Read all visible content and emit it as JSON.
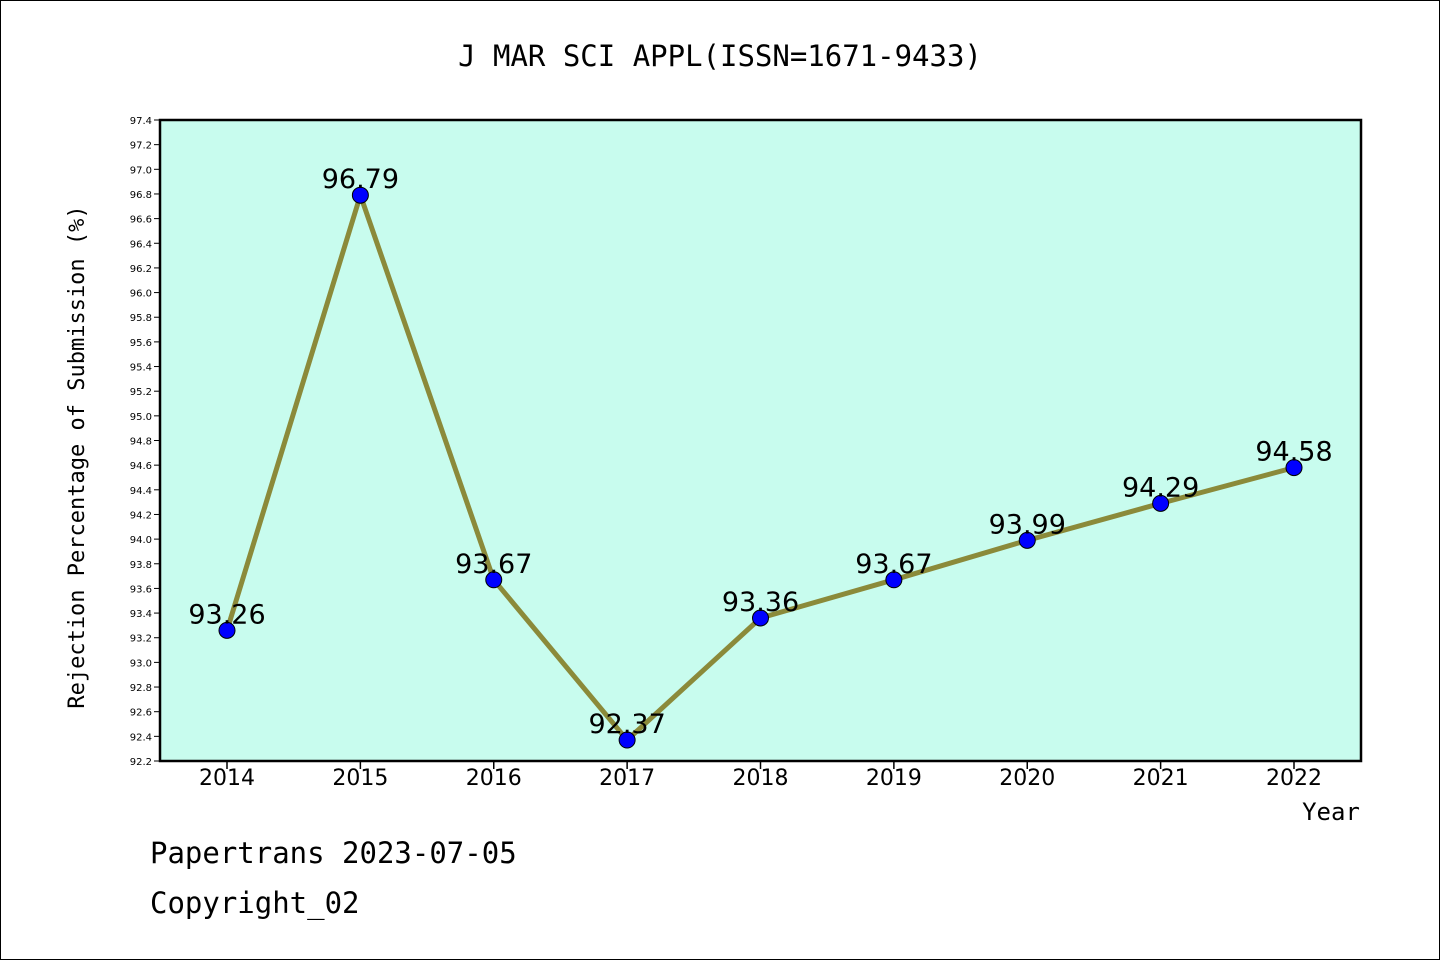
{
  "chart_data": {
    "type": "line",
    "title": "J MAR SCI APPL(ISSN=1671-9433)",
    "xlabel": "Year",
    "ylabel": "Rejection Percentage of Submission (%)",
    "categories": [
      "2014",
      "2015",
      "2016",
      "2017",
      "2018",
      "2019",
      "2020",
      "2021",
      "2022"
    ],
    "values": [
      93.26,
      96.79,
      93.67,
      92.37,
      93.36,
      93.67,
      93.99,
      94.29,
      94.58
    ],
    "data_labels": [
      "93.26",
      "96.79",
      "93.67",
      "92.37",
      "93.36",
      "93.67",
      "93.99",
      "94.29",
      "94.58"
    ],
    "ylim": [
      92.2,
      97.4
    ],
    "yticks": [
      "92.2",
      "92.4",
      "92.6",
      "92.8",
      "93.0",
      "93.2",
      "93.4",
      "93.6",
      "93.8",
      "94.0",
      "94.2",
      "94.4",
      "94.6",
      "94.8",
      "95.0",
      "95.2",
      "95.4",
      "95.6",
      "95.8",
      "96.0",
      "96.2",
      "96.4",
      "96.6",
      "96.8",
      "97.0",
      "97.2",
      "97.4"
    ],
    "grid": false,
    "colors": {
      "plot_background": "#c8fcee",
      "line": "#8b8a3a",
      "marker": "#0000ff"
    }
  },
  "footer": {
    "line1": "Papertrans 2023-07-05",
    "line2": "Copyright_02"
  }
}
